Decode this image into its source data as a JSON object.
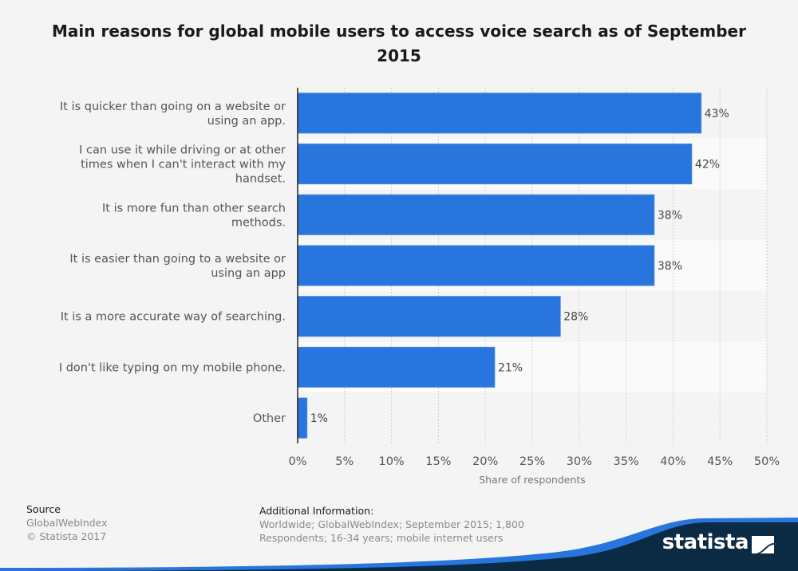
{
  "title": "Main reasons for global mobile users to access voice search as of September 2015",
  "colors": {
    "bar": "#2876dd",
    "band_odd": "#f4f4f4",
    "band_even": "#fafafa",
    "brand_dark": "#0b2a43",
    "brand_blue": "#2876dd"
  },
  "chart_data": {
    "type": "bar",
    "orientation": "horizontal",
    "title": "Main reasons for global mobile users to access voice search as of September 2015",
    "categories": [
      [
        "It is quicker than going on a website or",
        "using an app."
      ],
      [
        "I can use it while driving or at other",
        "times when I can't interact with my",
        "handset."
      ],
      [
        "It is more fun than other search",
        "methods."
      ],
      [
        "It is easier than going to a website or",
        "using an app"
      ],
      [
        "It is a more accurate way of searching."
      ],
      [
        "I don't like typing on my mobile phone."
      ],
      [
        "Other"
      ]
    ],
    "values": [
      43,
      42,
      38,
      38,
      28,
      21,
      1
    ],
    "value_labels": [
      "43%",
      "42%",
      "38%",
      "38%",
      "28%",
      "21%",
      "1%"
    ],
    "xlabel": "Share of respondents",
    "ylabel": "",
    "xlim": [
      0,
      50
    ],
    "ticks": [
      0,
      5,
      10,
      15,
      20,
      25,
      30,
      35,
      40,
      45,
      50
    ],
    "tick_labels": [
      "0%",
      "5%",
      "10%",
      "15%",
      "20%",
      "25%",
      "30%",
      "35%",
      "40%",
      "45%",
      "50%"
    ],
    "grid": true,
    "legend": "none"
  },
  "footer": {
    "source_heading": "Source",
    "source_name": "GlobalWebIndex",
    "copyright": "© Statista 2017",
    "info_heading": "Additional Information:",
    "info_line1": "Worldwide; GlobalWebIndex; September 2015; 1,800",
    "info_line2": "Respondents; 16-34 years; mobile internet users"
  },
  "brand": {
    "name": "statista",
    "logo_icon": "statista-logo-icon"
  }
}
